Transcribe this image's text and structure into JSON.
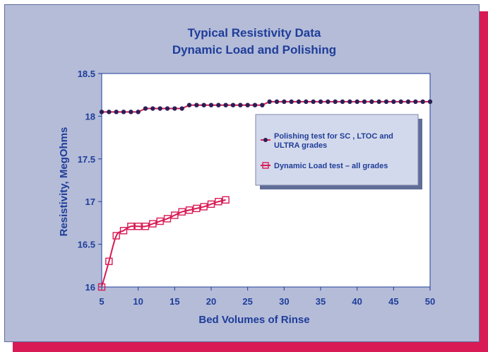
{
  "chart_data": {
    "type": "line",
    "title": "Typical Resistivity Data",
    "subtitle": "Dynamic Load and Polishing",
    "xlabel": "Bed Volumes of Rinse",
    "ylabel": "Resistivity, MegOhms",
    "xlim": [
      5,
      50
    ],
    "ylim": [
      16,
      18.5
    ],
    "xticks": [
      5,
      10,
      15,
      20,
      25,
      30,
      35,
      40,
      45,
      50
    ],
    "yticks": [
      16,
      16.5,
      17,
      17.5,
      18,
      18.5
    ],
    "ytick_labels": [
      "16",
      "16.5",
      "17",
      "17.5",
      "18",
      "18.5"
    ],
    "grid": false,
    "legend_position": "right",
    "series": [
      {
        "name": "Polishing test for SC , LTOC  and ULTRA grades",
        "color": "#d81b55",
        "marker_color": "#2a1f55",
        "marker": "circle",
        "x": [
          5,
          6,
          7,
          8,
          9,
          10,
          11,
          12,
          13,
          14,
          15,
          16,
          17,
          18,
          19,
          20,
          21,
          22,
          23,
          24,
          25,
          26,
          27,
          28,
          29,
          30,
          31,
          32,
          33,
          34,
          35,
          36,
          37,
          38,
          39,
          40,
          41,
          42,
          43,
          44,
          45,
          46,
          47,
          48,
          49,
          50
        ],
        "y": [
          18.05,
          18.05,
          18.05,
          18.05,
          18.05,
          18.05,
          18.09,
          18.09,
          18.09,
          18.09,
          18.09,
          18.09,
          18.13,
          18.13,
          18.13,
          18.13,
          18.13,
          18.13,
          18.13,
          18.13,
          18.13,
          18.13,
          18.13,
          18.17,
          18.17,
          18.17,
          18.17,
          18.17,
          18.17,
          18.17,
          18.17,
          18.17,
          18.17,
          18.17,
          18.17,
          18.17,
          18.17,
          18.17,
          18.17,
          18.17,
          18.17,
          18.17,
          18.17,
          18.17,
          18.17,
          18.17
        ]
      },
      {
        "name": "Dynamic Load test – all grades",
        "color": "#d81b55",
        "marker_color": "#d81b55",
        "marker": "square",
        "x": [
          5,
          6,
          7,
          8,
          9,
          10,
          11,
          12,
          13,
          14,
          15,
          16,
          17,
          18,
          19,
          20,
          21,
          22
        ],
        "y": [
          16.0,
          16.3,
          16.6,
          16.66,
          16.71,
          16.71,
          16.71,
          16.74,
          16.77,
          16.8,
          16.84,
          16.88,
          16.9,
          16.92,
          16.94,
          16.97,
          17.0,
          17.02
        ]
      }
    ]
  }
}
